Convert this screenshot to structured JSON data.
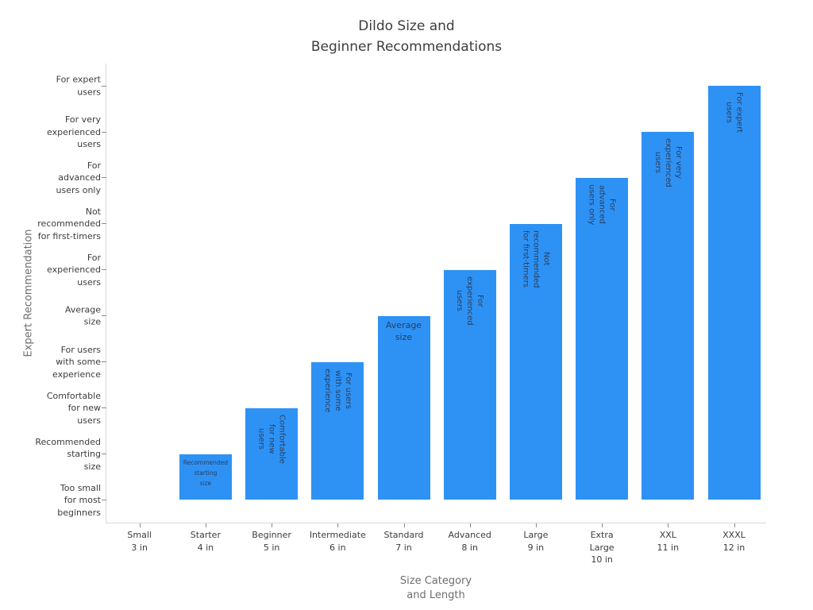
{
  "title": "Dildo Size and\nBeginner Recommendations",
  "x_axis": {
    "title": "Size Category\nand Length"
  },
  "y_axis": {
    "title": "Expert Recommendation"
  },
  "colors": {
    "bar": "#2E92F5",
    "bar_label": "#2a3f5f",
    "tick_label": "#3c3c3c",
    "axis_title": "#6e6e6e",
    "title": "#3d3d3d",
    "spine": "#d9d9d9",
    "background": "#ffffff"
  },
  "chart_data": {
    "type": "bar",
    "title": "Dildo Size and Beginner Recommendations",
    "xlabel": "Size Category and Length",
    "ylabel": "Expert Recommendation",
    "categories": [
      "Small 3 in",
      "Starter 4 in",
      "Beginner 5 in",
      "Intermediate 6 in",
      "Standard 7 in",
      "Advanced 8 in",
      "Large 9 in",
      "Extra Large 10 in",
      "XXL 11 in",
      "XXXL 12 in"
    ],
    "values": [
      0,
      1,
      2,
      3,
      4,
      5,
      6,
      7,
      8,
      9
    ],
    "x_tick_labels": [
      "Small\n3 in",
      "Starter\n4 in",
      "Beginner\n5 in",
      "Intermediate\n6 in",
      "Standard\n7 in",
      "Advanced\n8 in",
      "Large\n9 in",
      "Extra\nLarge\n10 in",
      "XXL\n11 in",
      "XXXL\n12 in"
    ],
    "y_tick_labels": [
      "Too small\nfor most\nbeginners",
      "Recommended\nstarting\nsize",
      "Comfortable\nfor new\nusers",
      "For users\nwith some\nexperience",
      "Average\nsize",
      "For\nexperienced\nusers",
      "Not\nrecommended\nfor first-timers",
      "For\nadvanced\nusers only",
      "For very\nexperienced\nusers",
      "For expert\nusers"
    ],
    "bar_labels": [
      "",
      "Recommended\nstarting\nsize",
      "Comfortable\nfor new\nusers",
      "For users\nwith some\nexperience",
      "Average\nsize",
      "For\nexperienced\nusers",
      "Not\nrecommended\nfor first-timers",
      "For\nadvanced\nusers only",
      "For very\nexperienced\nusers",
      "For expert\nusers"
    ],
    "bar_label_layouts": [
      "none",
      "hs",
      "v",
      "v",
      "h",
      "v",
      "v",
      "v",
      "v",
      "v"
    ],
    "ylim": [
      0,
      9
    ],
    "grid": false,
    "legend": null
  }
}
